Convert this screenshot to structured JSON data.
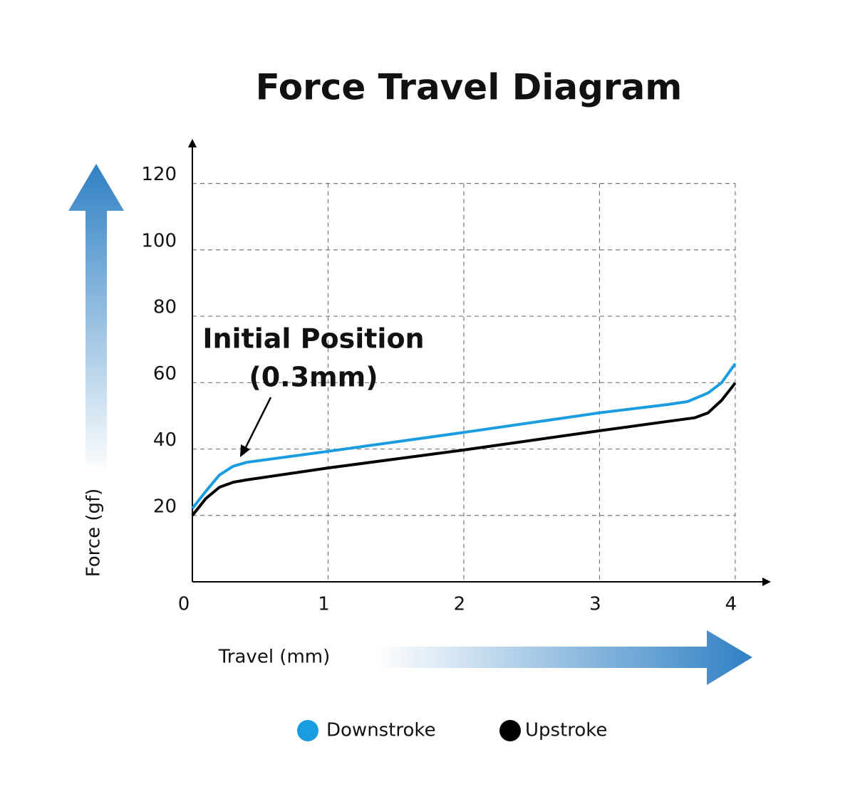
{
  "chart_data": {
    "type": "line",
    "title": "Force Travel Diagram",
    "x_label": "Travel (mm)",
    "y_label": "Force (gf)",
    "annotation": [
      "Initial Position",
      "(0.3mm)"
    ],
    "xlim": [
      0,
      4.2
    ],
    "ylim": [
      0,
      130
    ],
    "xticks": [
      0,
      1,
      2,
      3,
      4
    ],
    "yticks": [
      20,
      40,
      60,
      80,
      100,
      120
    ],
    "grid": true,
    "legend": "bottom",
    "series": [
      {
        "name": "Downstroke",
        "color": "#1a9de0",
        "x": [
          0,
          0.1,
          0.2,
          0.3,
          0.4,
          1,
          2,
          3,
          3.5,
          3.65,
          3.8,
          3.9,
          4
        ],
        "values": [
          22.1,
          27.3,
          32.2,
          34.8,
          36,
          39.3,
          45,
          50.9,
          53.4,
          54.3,
          56.9,
          60,
          65.7
        ]
      },
      {
        "name": "Upstroke",
        "color": "#000000",
        "x": [
          0,
          0.1,
          0.2,
          0.3,
          0.4,
          1,
          2,
          3,
          3.5,
          3.7,
          3.8,
          3.9,
          4
        ],
        "values": [
          20,
          25.1,
          28.5,
          30,
          30.7,
          34.3,
          39.7,
          45.5,
          48.3,
          49.4,
          50.9,
          54.7,
          59.9
        ]
      }
    ]
  }
}
